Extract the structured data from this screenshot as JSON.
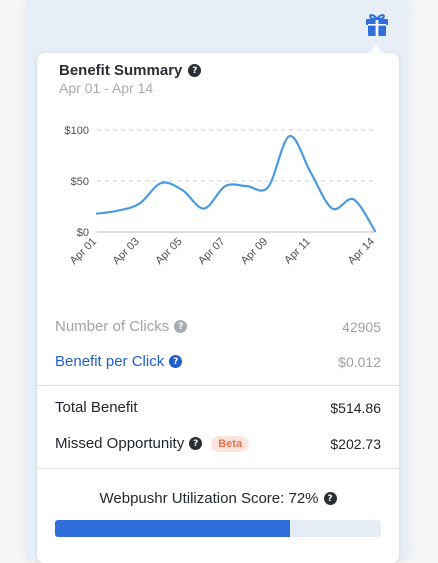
{
  "header": {
    "gift_icon": "gift-icon",
    "accent": "#2f6fdb"
  },
  "card": {
    "title": "Benefit Summary",
    "help_glyph": "?",
    "date_range": "Apr 01 - Apr 14"
  },
  "chart_data": {
    "type": "line",
    "title": "",
    "xlabel": "",
    "ylabel": "",
    "x": [
      "Apr 01",
      "Apr 02",
      "Apr 03",
      "Apr 04",
      "Apr 05",
      "Apr 06",
      "Apr 07",
      "Apr 08",
      "Apr 09",
      "Apr 10",
      "Apr 11",
      "Apr 12",
      "Apr 13",
      "Apr 14"
    ],
    "x_tick_labels": [
      "Apr 01",
      "Apr 03",
      "Apr 05",
      "Apr 07",
      "Apr 09",
      "Apr 11",
      "Apr 14"
    ],
    "x_tick_indices": [
      0,
      2,
      4,
      6,
      8,
      10,
      13
    ],
    "series": [
      {
        "values": [
          18,
          21,
          28,
          48,
          41,
          23,
          45,
          45,
          44,
          94,
          58,
          23,
          32,
          1
        ]
      }
    ],
    "y_ticks": [
      0,
      50,
      100
    ],
    "y_tick_labels": [
      "$0",
      "$50",
      "$100"
    ],
    "ylim": [
      0,
      100
    ],
    "grid": true,
    "line_color": "#4a9be0"
  },
  "stats": {
    "clicks_label": "Number of Clicks",
    "clicks_value": "42905",
    "bpc_label": "Benefit per Click",
    "bpc_value": "$0.012",
    "total_label": "Total Benefit",
    "total_value": "$514.86",
    "missed_label": "Missed Opportunity",
    "missed_badge": "Beta",
    "missed_value": "$202.73"
  },
  "score": {
    "label": "Webpushr Utilization Score: 72%",
    "percent": 72
  }
}
